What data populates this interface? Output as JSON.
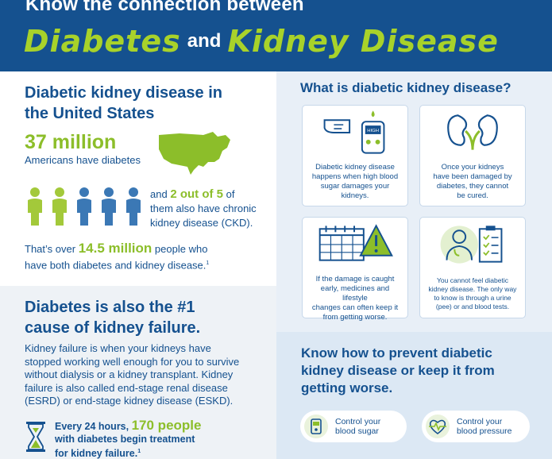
{
  "header": {
    "top_line": "Know the connection between",
    "word1": "Diabetes",
    "and": "and",
    "word2": "Kidney Disease"
  },
  "us_section": {
    "title_line1": "Diabetic kidney disease in",
    "title_line2": "the United States",
    "stat_number": "37 million",
    "stat_label": "Americans have diabetes",
    "ratio_prefix": "and",
    "ratio_value": "2 out of 5",
    "ratio_suffix": "of",
    "ratio_line2": "them also have chronic",
    "ratio_line3": "kidney disease (CKD).",
    "over_prefix": "That’s over",
    "over_value": "14.5 million",
    "over_suffix": "people who",
    "over_line2": "have both diabetes and kidney disease.",
    "footnote": "1",
    "people_colors": [
      "#a3c93a",
      "#a3c93a",
      "#3b78b5",
      "#3b78b5",
      "#3b78b5"
    ]
  },
  "failure_section": {
    "title_line1": "Diabetes is also the #1",
    "title_line2": "cause of kidney failure.",
    "p1": "Kidney failure is when your kidneys have",
    "p2": "stopped working well enough for you to survive",
    "p3": "without dialysis or a kidney transplant. Kidney",
    "p4": "failure is also called end-stage renal disease",
    "p5": "(ESRD) or end-stage kidney disease (ESKD).",
    "every_prefix": "Every 24 hours,",
    "every_value": "170 people",
    "every_line2": "with diabetes begin treatment",
    "every_line3": "for kidney failure.",
    "every_footnote": "1"
  },
  "what_is": {
    "title": "What is diabetic kidney disease?",
    "cards": [
      {
        "icon": "glucose-meter-icon",
        "meter_label": "HIGH",
        "text": [
          "Diabetic kidney disease",
          "happens when high blood",
          "sugar damages your",
          "kidneys."
        ]
      },
      {
        "icon": "kidneys-icon",
        "text": [
          "Once your kidneys",
          "have been damaged by",
          "diabetes, they cannot",
          "be cured."
        ]
      },
      {
        "icon": "calendar-warning-icon",
        "text": [
          "If the damage is caught",
          "early, medicines and lifestyle",
          "changes can often keep it",
          "from getting worse."
        ]
      },
      {
        "icon": "doctor-checklist-icon",
        "text": [
          "You cannot feel diabetic",
          "kidney disease. The only way",
          "to know is through a urine",
          "(pee) or and blood tests."
        ]
      }
    ]
  },
  "prevent": {
    "title_line1": "Know how to prevent diabetic",
    "title_line2": "kidney disease or keep it from",
    "title_line3": "getting worse.",
    "items": [
      {
        "icon": "blood-sugar-meter-icon",
        "line1": "Control your",
        "line2": "blood sugar"
      },
      {
        "icon": "heartbeat-icon",
        "line1": "Control your",
        "line2": "blood pressure"
      }
    ]
  },
  "colors": {
    "navy": "#15518f",
    "green": "#8cbe2a",
    "light_blue_bg": "#e8eff7",
    "gray_bg": "#eef2f6"
  }
}
